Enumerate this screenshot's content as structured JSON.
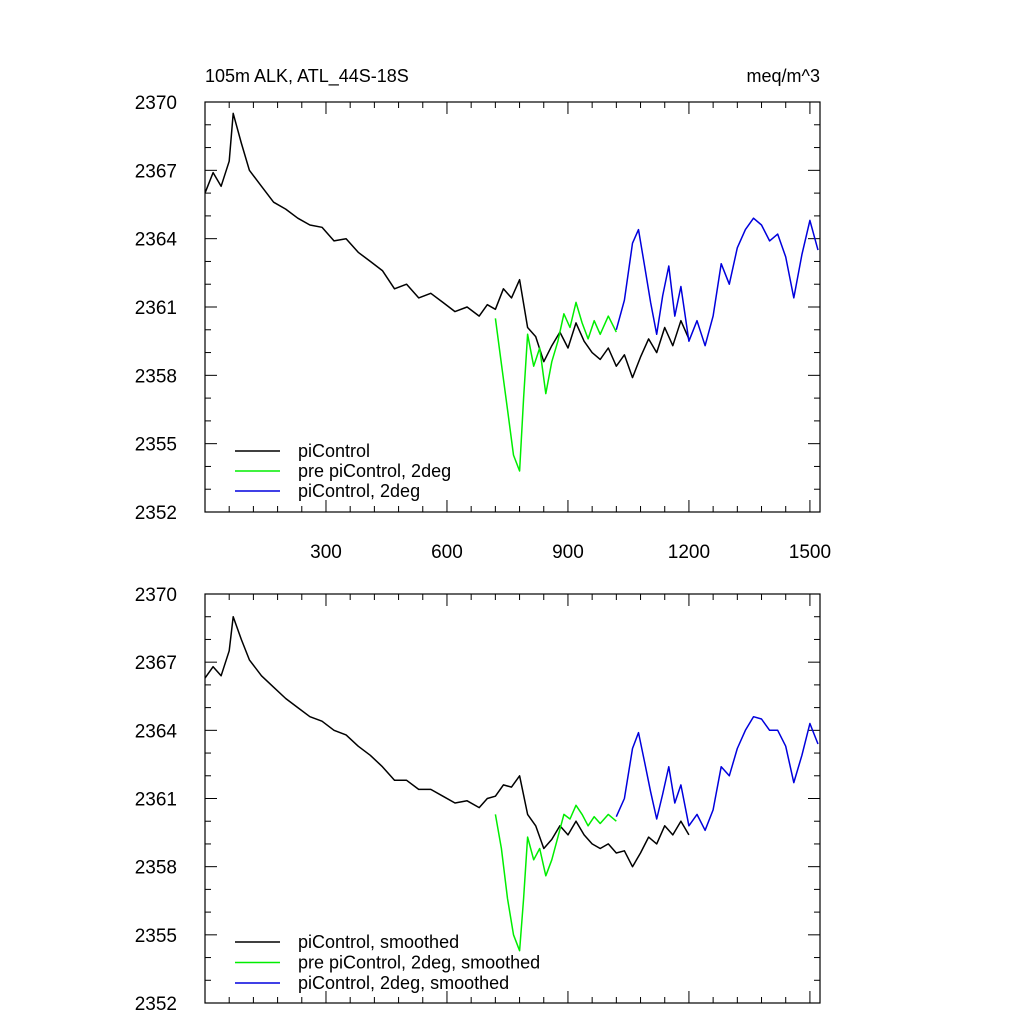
{
  "header": {
    "title": "105m ALK, ATL_44S-18S",
    "units": "meq/m^3"
  },
  "colors": {
    "piControl": "#000000",
    "pre_piControl_2deg": "#00ee00",
    "piControl_2deg": "#0000dd"
  },
  "chart_data": [
    {
      "type": "line",
      "panel": "top",
      "title": "105m ALK, ATL_44S-18S",
      "units_label": "meq/m^3",
      "xlabel": "",
      "ylabel": "",
      "xlim": [
        0,
        1525
      ],
      "ylim": [
        2352,
        2370
      ],
      "x_tick_labels": [
        "300",
        "600",
        "900",
        "1200",
        "1500"
      ],
      "x_ticks": [
        300,
        600,
        900,
        1200,
        1500
      ],
      "y_ticks": [
        2352,
        2355,
        2358,
        2361,
        2364,
        2367,
        2370
      ],
      "y_tick_labels": [
        "2352",
        "2355",
        "2358",
        "2361",
        "2364",
        "2367",
        "2370"
      ],
      "grid": false,
      "legend_position": "bottom-left",
      "series": [
        {
          "name": "piControl",
          "color": "#000000",
          "x": [
            0,
            20,
            40,
            60,
            70,
            90,
            110,
            140,
            170,
            200,
            230,
            260,
            290,
            320,
            350,
            380,
            410,
            440,
            470,
            500,
            530,
            560,
            590,
            620,
            650,
            680,
            700,
            720,
            740,
            760,
            780,
            800,
            820,
            840,
            860,
            880,
            900,
            920,
            940,
            960,
            980,
            1000,
            1020,
            1040,
            1060,
            1080,
            1100,
            1120,
            1140,
            1160,
            1180,
            1200
          ],
          "y": [
            2366.0,
            2366.9,
            2366.3,
            2367.4,
            2369.5,
            2368.2,
            2367.0,
            2366.3,
            2365.6,
            2365.3,
            2364.9,
            2364.6,
            2364.5,
            2363.9,
            2364.0,
            2363.4,
            2363.0,
            2362.6,
            2361.8,
            2362.0,
            2361.4,
            2361.6,
            2361.2,
            2360.8,
            2361.0,
            2360.6,
            2361.1,
            2360.9,
            2361.8,
            2361.4,
            2362.2,
            2360.1,
            2359.7,
            2358.6,
            2359.3,
            2359.9,
            2359.2,
            2360.3,
            2359.5,
            2359.0,
            2358.7,
            2359.2,
            2358.4,
            2358.9,
            2357.9,
            2358.8,
            2359.6,
            2359.0,
            2360.1,
            2359.3,
            2360.4,
            2359.6
          ]
        },
        {
          "name": "pre piControl, 2deg",
          "color": "#00ee00",
          "x": [
            720,
            735,
            750,
            765,
            780,
            790,
            800,
            815,
            830,
            845,
            860,
            875,
            890,
            905,
            920,
            935,
            950,
            965,
            980,
            1000,
            1020
          ],
          "y": [
            2360.5,
            2358.5,
            2356.5,
            2354.5,
            2353.8,
            2357.0,
            2359.8,
            2358.4,
            2359.2,
            2357.2,
            2358.6,
            2359.5,
            2360.7,
            2360.1,
            2361.2,
            2360.3,
            2359.6,
            2360.4,
            2359.8,
            2360.6,
            2359.9
          ]
        },
        {
          "name": "piControl, 2deg",
          "color": "#0000dd",
          "x": [
            1020,
            1040,
            1060,
            1075,
            1090,
            1105,
            1120,
            1135,
            1150,
            1165,
            1180,
            1200,
            1220,
            1240,
            1260,
            1280,
            1300,
            1320,
            1340,
            1360,
            1380,
            1400,
            1420,
            1440,
            1460,
            1480,
            1500,
            1520
          ],
          "y": [
            2360.0,
            2361.3,
            2363.8,
            2364.4,
            2362.8,
            2361.2,
            2359.8,
            2361.5,
            2362.8,
            2360.6,
            2361.9,
            2359.5,
            2360.4,
            2359.3,
            2360.6,
            2362.9,
            2362.0,
            2363.6,
            2364.4,
            2364.9,
            2364.6,
            2363.9,
            2364.2,
            2363.2,
            2361.4,
            2363.3,
            2364.8,
            2363.5
          ]
        }
      ]
    },
    {
      "type": "line",
      "panel": "bottom",
      "xlabel": "",
      "ylabel": "",
      "xlim": [
        0,
        1525
      ],
      "ylim": [
        2352,
        2370
      ],
      "x_ticks": [
        300,
        600,
        900,
        1200,
        1500
      ],
      "y_ticks": [
        2352,
        2355,
        2358,
        2361,
        2364,
        2367,
        2370
      ],
      "y_tick_labels": [
        "2352",
        "2355",
        "2358",
        "2361",
        "2364",
        "2367",
        "2370"
      ],
      "grid": false,
      "legend_position": "bottom-left",
      "series": [
        {
          "name": "piControl, smoothed",
          "color": "#000000",
          "x": [
            0,
            20,
            40,
            60,
            70,
            90,
            110,
            140,
            170,
            200,
            230,
            260,
            290,
            320,
            350,
            380,
            410,
            440,
            470,
            500,
            530,
            560,
            590,
            620,
            650,
            680,
            700,
            720,
            740,
            760,
            780,
            800,
            820,
            840,
            860,
            880,
            900,
            920,
            940,
            960,
            980,
            1000,
            1020,
            1040,
            1060,
            1080,
            1100,
            1120,
            1140,
            1160,
            1180,
            1200
          ],
          "y": [
            2366.3,
            2366.8,
            2366.4,
            2367.5,
            2369.0,
            2368.0,
            2367.1,
            2366.4,
            2365.9,
            2365.4,
            2365.0,
            2364.6,
            2364.4,
            2364.0,
            2363.8,
            2363.3,
            2362.9,
            2362.4,
            2361.8,
            2361.8,
            2361.4,
            2361.4,
            2361.1,
            2360.8,
            2360.9,
            2360.6,
            2361.0,
            2361.1,
            2361.6,
            2361.5,
            2362.0,
            2360.3,
            2359.8,
            2358.8,
            2359.2,
            2359.8,
            2359.4,
            2360.0,
            2359.4,
            2359.0,
            2358.8,
            2359.0,
            2358.6,
            2358.7,
            2358.0,
            2358.6,
            2359.3,
            2359.0,
            2359.8,
            2359.4,
            2360.0,
            2359.4
          ]
        },
        {
          "name": "pre piControl, 2deg, smoothed",
          "color": "#00ee00",
          "x": [
            720,
            735,
            750,
            765,
            780,
            790,
            800,
            815,
            830,
            845,
            860,
            875,
            890,
            905,
            920,
            935,
            950,
            965,
            980,
            1000,
            1020
          ],
          "y": [
            2360.3,
            2358.8,
            2356.6,
            2355.0,
            2354.3,
            2356.6,
            2359.3,
            2358.3,
            2358.8,
            2357.6,
            2358.3,
            2359.3,
            2360.3,
            2360.1,
            2360.7,
            2360.3,
            2359.8,
            2360.2,
            2359.9,
            2360.3,
            2360.0
          ]
        },
        {
          "name": "piControl, 2deg, smoothed",
          "color": "#0000dd",
          "x": [
            1020,
            1040,
            1060,
            1075,
            1090,
            1105,
            1120,
            1135,
            1150,
            1165,
            1180,
            1200,
            1220,
            1240,
            1260,
            1280,
            1300,
            1320,
            1340,
            1360,
            1380,
            1400,
            1420,
            1440,
            1460,
            1480,
            1500,
            1520
          ],
          "y": [
            2360.2,
            2361.0,
            2363.2,
            2363.9,
            2362.6,
            2361.3,
            2360.1,
            2361.2,
            2362.4,
            2360.8,
            2361.6,
            2359.8,
            2360.3,
            2359.6,
            2360.5,
            2362.4,
            2362.0,
            2363.2,
            2364.0,
            2364.6,
            2364.5,
            2364.0,
            2364.0,
            2363.3,
            2361.7,
            2362.9,
            2364.3,
            2363.4
          ]
        }
      ]
    }
  ]
}
